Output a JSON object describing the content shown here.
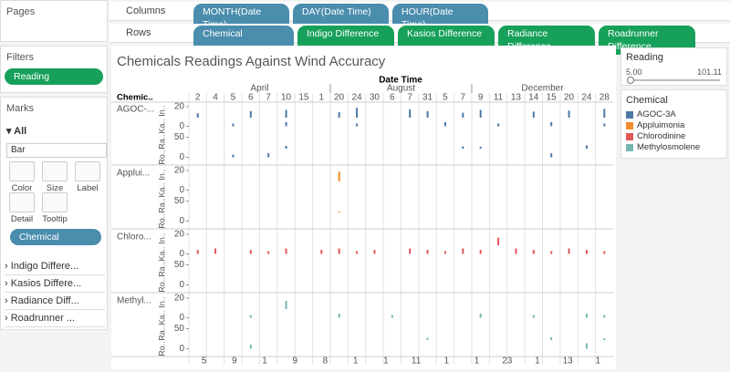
{
  "sidebar": {
    "pages": "Pages",
    "filters": {
      "title": "Filters",
      "pill": "Reading"
    },
    "marks": {
      "title": "Marks",
      "all": "All",
      "type": "Bar",
      "buttons": [
        "Color",
        "Size",
        "Label",
        "Detail",
        "Tooltip"
      ],
      "pill": "Chemical",
      "measures": [
        "Indigo Differe...",
        "Kasios Differe...",
        "Radiance Diff...",
        "Roadrunner ..."
      ]
    }
  },
  "shelves": {
    "columns": {
      "label": "Columns",
      "pills": [
        "MONTH(Date Time)",
        "DAY(Date Time)",
        "HOUR(Date Time)"
      ]
    },
    "rows": {
      "label": "Rows",
      "pills": [
        "Chemical",
        "Indigo Difference",
        "Kasios Difference",
        "Radiance Difference",
        "Roadrunner Difference"
      ]
    }
  },
  "chart_data": {
    "type": "bar",
    "title": "Chemicals Readings Against Wind Accuracy",
    "x_label": "Date Time",
    "row_header": "Chemic..",
    "months": [
      "April",
      "August",
      "December"
    ],
    "day_labels_top": [
      "2",
      "4",
      "5",
      "6",
      "7",
      "10",
      "15",
      "1",
      "20",
      "24",
      "30",
      "6",
      "7",
      "31",
      "5",
      "7",
      "9",
      "11",
      "13",
      "14",
      "15",
      "20",
      "24",
      "28"
    ],
    "day_labels_bottom": [
      "5",
      "9",
      "1",
      "9",
      "8",
      "1",
      "1",
      "11",
      "1",
      "1",
      "23",
      "1",
      "13",
      "1"
    ],
    "chemicals": [
      {
        "name": "AGOC-...",
        "color": "#4e79a7",
        "rows": [
          {
            "label": "In..",
            "ylim": [
              0,
              25
            ],
            "yticks": [
              20
            ],
            "values": [
              8,
              null,
              null,
              12,
              null,
              14,
              null,
              null,
              10,
              18,
              null,
              null,
              15,
              12,
              null,
              9,
              14,
              null,
              null,
              11,
              null,
              13,
              null,
              16
            ]
          },
          {
            "label": "Ka..",
            "ylim": [
              -5,
              5
            ],
            "yticks": [
              0
            ],
            "values": [
              null,
              null,
              2,
              null,
              null,
              3,
              null,
              null,
              null,
              2,
              null,
              null,
              null,
              null,
              3,
              null,
              null,
              2,
              null,
              null,
              3,
              null,
              null,
              2
            ]
          },
          {
            "label": "Ra..",
            "ylim": [
              0,
              60
            ],
            "yticks": [
              50
            ],
            "values": [
              null,
              null,
              null,
              null,
              null,
              12,
              null,
              null,
              null,
              null,
              null,
              null,
              null,
              null,
              null,
              10,
              8,
              null,
              null,
              null,
              null,
              null,
              14,
              null
            ]
          },
          {
            "label": "Ro..",
            "ylim": [
              -5,
              5
            ],
            "yticks": [
              0
            ],
            "values": [
              null,
              null,
              2,
              null,
              3,
              null,
              null,
              null,
              null,
              null,
              null,
              null,
              null,
              null,
              null,
              null,
              null,
              null,
              null,
              null,
              3,
              null,
              null,
              null
            ]
          }
        ]
      },
      {
        "name": "Applui...",
        "color": "#f28e2b",
        "rows": [
          {
            "label": "In..",
            "ylim": [
              0,
              25
            ],
            "yticks": [
              20
            ],
            "values": [
              null,
              null,
              null,
              null,
              null,
              null,
              null,
              null,
              18,
              null,
              null,
              null,
              null,
              null,
              null,
              null,
              null,
              null,
              null,
              null,
              null,
              null,
              null,
              null
            ]
          },
          {
            "label": "Ka..",
            "ylim": [
              -5,
              5
            ],
            "yticks": [
              0
            ],
            "values": [
              null,
              null,
              null,
              null,
              null,
              null,
              null,
              null,
              null,
              null,
              null,
              null,
              null,
              null,
              null,
              null,
              null,
              null,
              null,
              null,
              null,
              null,
              null,
              null
            ]
          },
          {
            "label": "Ra..",
            "ylim": [
              0,
              60
            ],
            "yticks": [
              50
            ],
            "values": [
              null,
              null,
              null,
              null,
              null,
              null,
              null,
              null,
              4,
              null,
              null,
              null,
              null,
              null,
              null,
              null,
              null,
              null,
              null,
              null,
              null,
              null,
              null,
              null
            ]
          },
          {
            "label": "Ro..",
            "ylim": [
              -5,
              5
            ],
            "yticks": [
              0
            ],
            "values": [
              null,
              null,
              null,
              null,
              null,
              null,
              null,
              null,
              null,
              null,
              null,
              null,
              null,
              null,
              null,
              null,
              null,
              null,
              null,
              null,
              null,
              null,
              null,
              null
            ]
          }
        ]
      },
      {
        "name": "Chloro...",
        "color": "#e15759",
        "rows": [
          {
            "label": "In..",
            "ylim": [
              0,
              25
            ],
            "yticks": [
              20
            ],
            "values": [
              null,
              null,
              null,
              null,
              null,
              null,
              null,
              null,
              null,
              null,
              null,
              null,
              null,
              null,
              null,
              null,
              null,
              14,
              null,
              null,
              null,
              null,
              null,
              null
            ]
          },
          {
            "label": "Ka..",
            "ylim": [
              -5,
              5
            ],
            "yticks": [
              0
            ],
            "values": [
              3,
              4,
              null,
              3,
              2,
              4,
              null,
              3,
              4,
              2,
              3,
              null,
              4,
              3,
              2,
              4,
              3,
              null,
              4,
              3,
              2,
              4,
              3,
              2
            ]
          },
          {
            "label": "Ra..",
            "ylim": [
              0,
              60
            ],
            "yticks": [
              50
            ],
            "values": [
              null,
              null,
              null,
              null,
              null,
              null,
              null,
              null,
              null,
              null,
              null,
              null,
              null,
              null,
              null,
              null,
              null,
              null,
              null,
              null,
              null,
              null,
              null,
              null
            ]
          },
          {
            "label": "Ro..",
            "ylim": [
              -5,
              5
            ],
            "yticks": [
              0
            ],
            "values": [
              null,
              null,
              null,
              null,
              null,
              null,
              null,
              null,
              null,
              null,
              null,
              null,
              null,
              null,
              null,
              null,
              null,
              null,
              null,
              null,
              null,
              null,
              null,
              null
            ]
          }
        ]
      },
      {
        "name": "Methyl...",
        "color": "#76b7b2",
        "rows": [
          {
            "label": "In..",
            "ylim": [
              0,
              25
            ],
            "yticks": [
              20
            ],
            "values": [
              null,
              null,
              null,
              null,
              null,
              15,
              null,
              null,
              null,
              null,
              null,
              null,
              null,
              null,
              null,
              null,
              null,
              null,
              null,
              null,
              null,
              null,
              null,
              null
            ]
          },
          {
            "label": "Ka..",
            "ylim": [
              -5,
              5
            ],
            "yticks": [
              0
            ],
            "values": [
              null,
              null,
              null,
              2,
              null,
              null,
              null,
              null,
              3,
              null,
              null,
              2,
              null,
              null,
              null,
              null,
              3,
              null,
              null,
              2,
              null,
              null,
              3,
              2
            ]
          },
          {
            "label": "Ra..",
            "ylim": [
              0,
              60
            ],
            "yticks": [
              50
            ],
            "values": [
              null,
              null,
              null,
              null,
              null,
              null,
              null,
              null,
              null,
              null,
              null,
              null,
              null,
              10,
              null,
              null,
              null,
              null,
              null,
              null,
              12,
              null,
              null,
              8
            ]
          },
          {
            "label": "Ro..",
            "ylim": [
              -5,
              5
            ],
            "yticks": [
              0
            ],
            "values": [
              null,
              null,
              null,
              3,
              null,
              null,
              null,
              null,
              null,
              null,
              null,
              null,
              null,
              null,
              null,
              null,
              null,
              null,
              null,
              null,
              null,
              null,
              4,
              null
            ]
          }
        ]
      }
    ]
  },
  "reading_filter": {
    "title": "Reading",
    "min": "5.00",
    "max": "101.11"
  },
  "legend": {
    "title": "Chemical",
    "items": [
      {
        "name": "AGOC-3A",
        "color": "#4e79a7"
      },
      {
        "name": "Appluimonia",
        "color": "#f28e2b"
      },
      {
        "name": "Chlorodinine",
        "color": "#e15759"
      },
      {
        "name": "Methylosmolene",
        "color": "#76b7b2"
      }
    ]
  }
}
